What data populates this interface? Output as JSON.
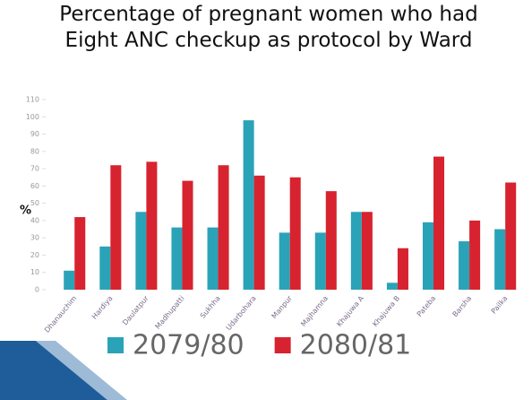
{
  "chart_data": {
    "type": "bar",
    "title": "Percentage of pregnant women who had Eight ANC checkup as protocol by Ward",
    "y_label": "%",
    "categories": [
      "Dhanauchim",
      "Hardiya",
      "Daulatpur",
      "Madhupatti",
      "Sukhha",
      "Udarbohara",
      "Manpur",
      "Majhamna",
      "Khajuwa A",
      "Khajuwa B",
      "Pateba",
      "Barsha",
      "Pailka"
    ],
    "series": [
      {
        "name": "2079/80",
        "color": "#2aa3b8",
        "values": [
          11,
          25,
          45,
          36,
          36,
          98,
          33,
          33,
          45,
          4,
          39,
          28,
          35
        ]
      },
      {
        "name": "2080/81",
        "color": "#d7232f",
        "values": [
          42,
          72,
          74,
          63,
          72,
          66,
          65,
          57,
          45,
          24,
          77,
          40,
          62
        ]
      }
    ],
    "ylim": [
      0,
      110
    ],
    "yticks": [
      0,
      10,
      20,
      30,
      40,
      50,
      60,
      70,
      80,
      90,
      100,
      110
    ],
    "legend": "bottom"
  }
}
